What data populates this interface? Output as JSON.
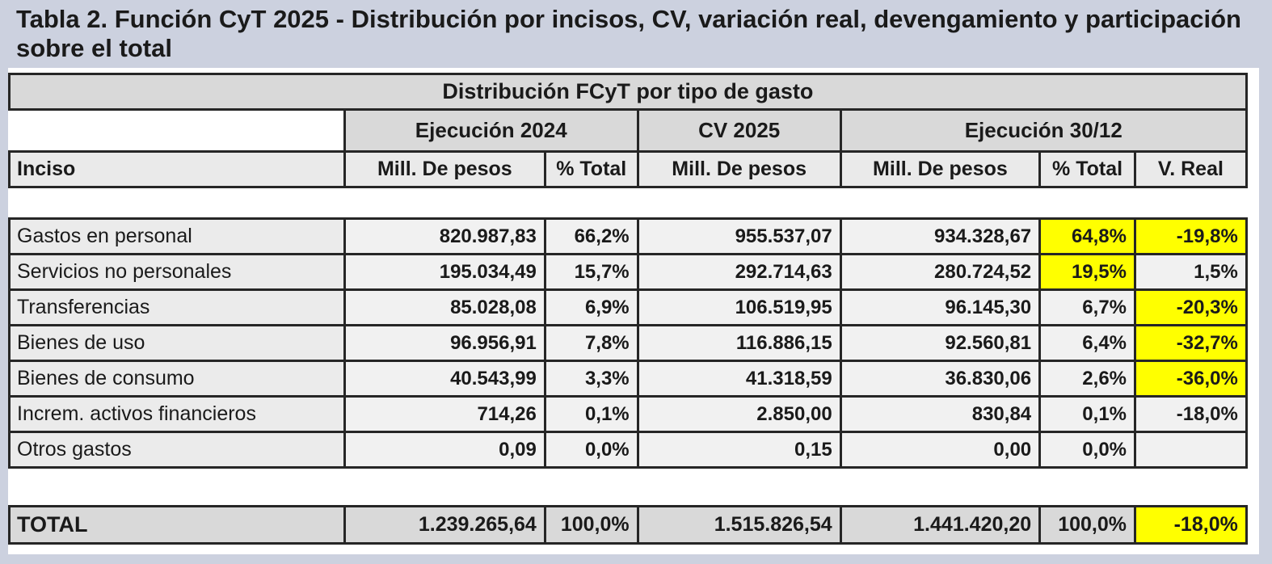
{
  "title": "Tabla 2. Función CyT 2025 - Distribución por incisos, CV, variación real, devengamiento y participación sobre el total",
  "table": {
    "caption": "Distribución FCyT por tipo de gasto",
    "col_groups": [
      {
        "label": "Ejecución 2024",
        "span": 2
      },
      {
        "label": "CV 2025",
        "span": 1
      },
      {
        "label": "Ejecución 30/12",
        "span": 3
      }
    ],
    "columns": [
      "Inciso",
      "Mill. De pesos",
      "% Total",
      "Mill. De pesos",
      "Mill. De pesos",
      "% Total",
      "V. Real"
    ],
    "rows": [
      {
        "label": "Gastos en personal",
        "values": [
          "820.987,83",
          "66,2%",
          "955.537,07",
          "934.328,67",
          "64,8%",
          "-19,8%"
        ],
        "highlight": [
          4,
          5
        ]
      },
      {
        "label": "Servicios no personales",
        "values": [
          "195.034,49",
          "15,7%",
          "292.714,63",
          "280.724,52",
          "19,5%",
          "1,5%"
        ],
        "highlight": [
          4
        ]
      },
      {
        "label": "Transferencias",
        "values": [
          "85.028,08",
          "6,9%",
          "106.519,95",
          "96.145,30",
          "6,7%",
          "-20,3%"
        ],
        "highlight": [
          5
        ]
      },
      {
        "label": "Bienes de uso",
        "values": [
          "96.956,91",
          "7,8%",
          "116.886,15",
          "92.560,81",
          "6,4%",
          "-32,7%"
        ],
        "highlight": [
          5
        ]
      },
      {
        "label": "Bienes de consumo",
        "values": [
          "40.543,99",
          "3,3%",
          "41.318,59",
          "36.830,06",
          "2,6%",
          "-36,0%"
        ],
        "highlight": [
          5
        ]
      },
      {
        "label": "Increm. activos financieros",
        "values": [
          "714,26",
          "0,1%",
          "2.850,00",
          "830,84",
          "0,1%",
          "-18,0%"
        ],
        "highlight": []
      },
      {
        "label": "Otros gastos",
        "values": [
          "0,09",
          "0,0%",
          "0,15",
          "0,00",
          "0,0%",
          ""
        ],
        "highlight": []
      }
    ],
    "total": {
      "label": "TOTAL",
      "values": [
        "1.239.265,64",
        "100,0%",
        "1.515.826,54",
        "1.441.420,20",
        "100,0%",
        "-18,0%"
      ],
      "highlight": [
        5
      ]
    }
  },
  "colors": {
    "page_bg": "#ccd1df",
    "doc_bg": "#ffffff",
    "header_bg": "#d9d9d9",
    "subheader_bg": "#eaeaea",
    "row_label_bg": "#ebebeb",
    "cell_bg": "#f1f1f1",
    "total_bg": "#d9d9d9",
    "highlight": "#ffff00",
    "border": "#262626",
    "text": "#1a1a1a"
  }
}
